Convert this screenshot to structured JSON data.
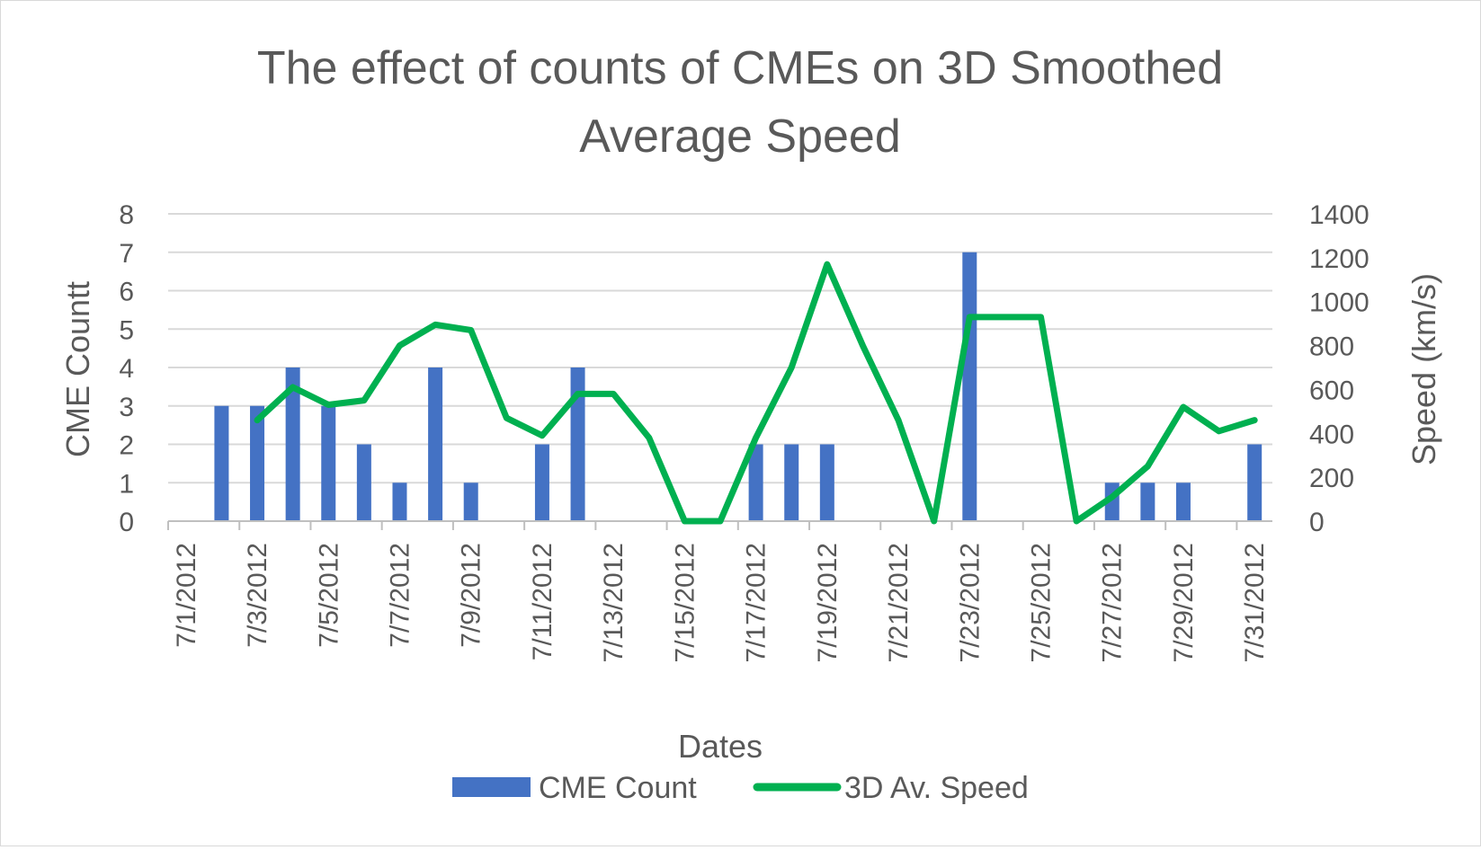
{
  "chart_data": {
    "type": "bar+line",
    "title_lines": [
      "The effect of counts of CMEs on 3D Smoothed",
      "Average Speed"
    ],
    "xlabel": "Dates",
    "ylabel_left": "CME Countt",
    "ylabel_right": "Speed (km/s)",
    "ylim_left": [
      0,
      8
    ],
    "ylim_right": [
      0,
      1400
    ],
    "yticks_left": [
      "0",
      "1",
      "2",
      "3",
      "4",
      "5",
      "6",
      "7",
      "8"
    ],
    "yticks_right": [
      "0",
      "200",
      "400",
      "600",
      "800",
      "1000",
      "1200",
      "1400"
    ],
    "categories": [
      "7/1/2012",
      "7/2/2012",
      "7/3/2012",
      "7/4/2012",
      "7/5/2012",
      "7/6/2012",
      "7/7/2012",
      "7/8/2012",
      "7/9/2012",
      "7/10/2012",
      "7/11/2012",
      "7/12/2012",
      "7/13/2012",
      "7/14/2012",
      "7/15/2012",
      "7/16/2012",
      "7/17/2012",
      "7/18/2012",
      "7/19/2012",
      "7/20/2012",
      "7/21/2012",
      "7/22/2012",
      "7/23/2012",
      "7/24/2012",
      "7/25/2012",
      "7/26/2012",
      "7/27/2012",
      "7/28/2012",
      "7/29/2012",
      "7/30/2012",
      "7/31/2012"
    ],
    "tick_labels": [
      "7/1/2012",
      "7/3/2012",
      "7/5/2012",
      "7/7/2012",
      "7/9/2012",
      "7/11/2012",
      "7/13/2012",
      "7/15/2012",
      "7/17/2012",
      "7/19/2012",
      "7/21/2012",
      "7/23/2012",
      "7/25/2012",
      "7/27/2012",
      "7/29/2012",
      "7/31/2012"
    ],
    "series": [
      {
        "name": "CME Count",
        "type": "bar",
        "axis": "left",
        "color": "#4472C4",
        "values": [
          0,
          3,
          3,
          4,
          3,
          2,
          1,
          4,
          1,
          0,
          2,
          4,
          0,
          0,
          0,
          0,
          2,
          2,
          2,
          0,
          0,
          0,
          7,
          0,
          0,
          0,
          1,
          1,
          1,
          0,
          2
        ]
      },
      {
        "name": "3D Av. Speed",
        "type": "line",
        "axis": "right",
        "color": "#00B050",
        "values": [
          null,
          null,
          460,
          610,
          530,
          550,
          800,
          895,
          870,
          470,
          390,
          580,
          580,
          380,
          0,
          0,
          380,
          700,
          1170,
          800,
          460,
          0,
          930,
          930,
          930,
          0,
          110,
          250,
          520,
          410,
          460
        ]
      }
    ],
    "legend": [
      "CME Count",
      "3D Av. Speed"
    ],
    "legend_position": "bottom",
    "grid": true
  }
}
